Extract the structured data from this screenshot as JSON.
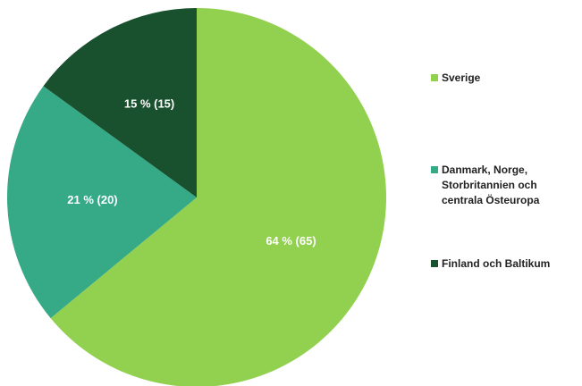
{
  "chart_data": {
    "type": "pie",
    "categories": [
      "Sverige",
      "Danmark, Norge, Storbritannien och centrala Östeuropa",
      "Finland och Baltikum"
    ],
    "values": [
      64,
      21,
      15
    ],
    "value_labels": [
      "64 % (65)",
      "21 % (20)",
      "15 % (15)"
    ],
    "colors": [
      "#92d050",
      "#36a986",
      "#19502e"
    ],
    "legend": "right"
  }
}
